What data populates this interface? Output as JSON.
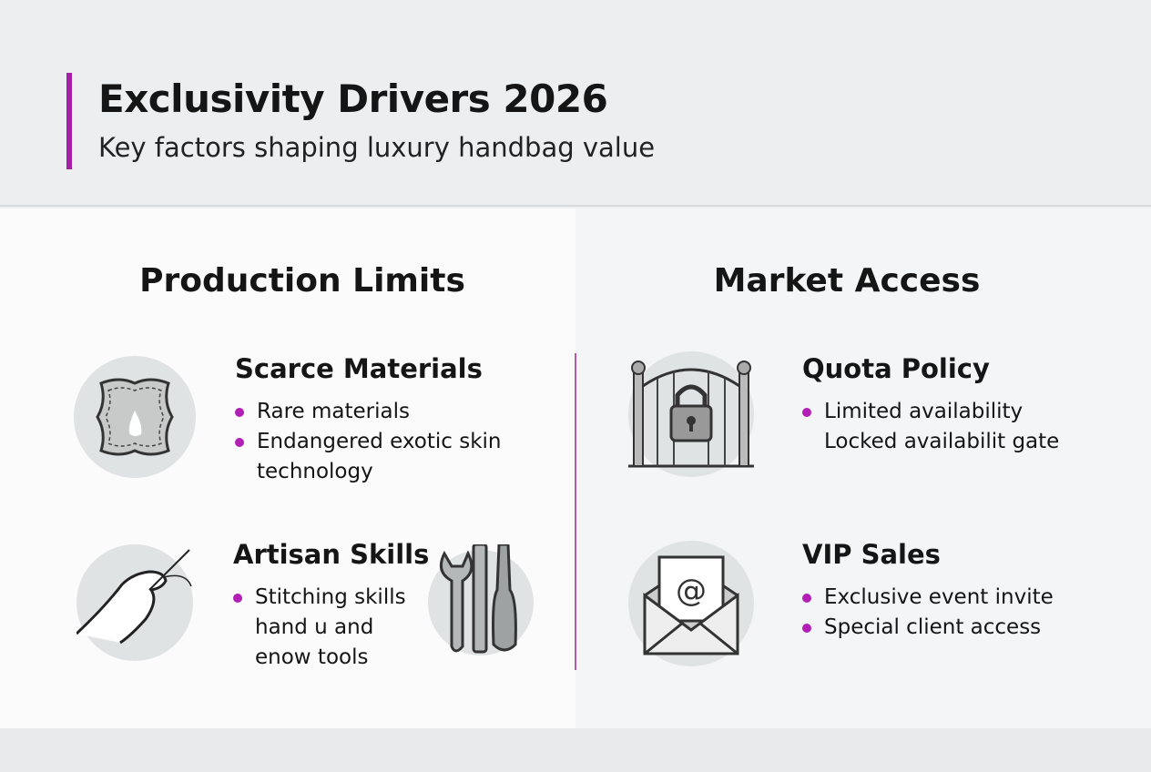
{
  "header": {
    "title": "Exclusivity Drivers 2026",
    "subtitle": "Key factors shaping luxury handbag value",
    "accent_color": "#a41fa8"
  },
  "columns": [
    {
      "title": "Production Limits",
      "items": [
        {
          "heading": "Scarce Materials",
          "icon": "leather-hide-icon",
          "bullets": [
            "Rare materials",
            "Endangered exotic skin",
            "technology"
          ]
        },
        {
          "heading": "Artisan Skills",
          "icon": "needle-hand-icon",
          "secondary_icon": "tools-icon",
          "bullets": [
            "Stitching skills",
            "hand u and",
            "enow tools"
          ]
        }
      ]
    },
    {
      "title": "Market Access",
      "items": [
        {
          "heading": "Quota Policy",
          "icon": "locked-gate-icon",
          "bullets": [
            "Limited availability",
            "Locked availabilit gate"
          ]
        },
        {
          "heading": "VIP Sales",
          "icon": "envelope-at-icon",
          "bullets": [
            "Exclusive event invite",
            "Special client access"
          ]
        }
      ]
    }
  ]
}
